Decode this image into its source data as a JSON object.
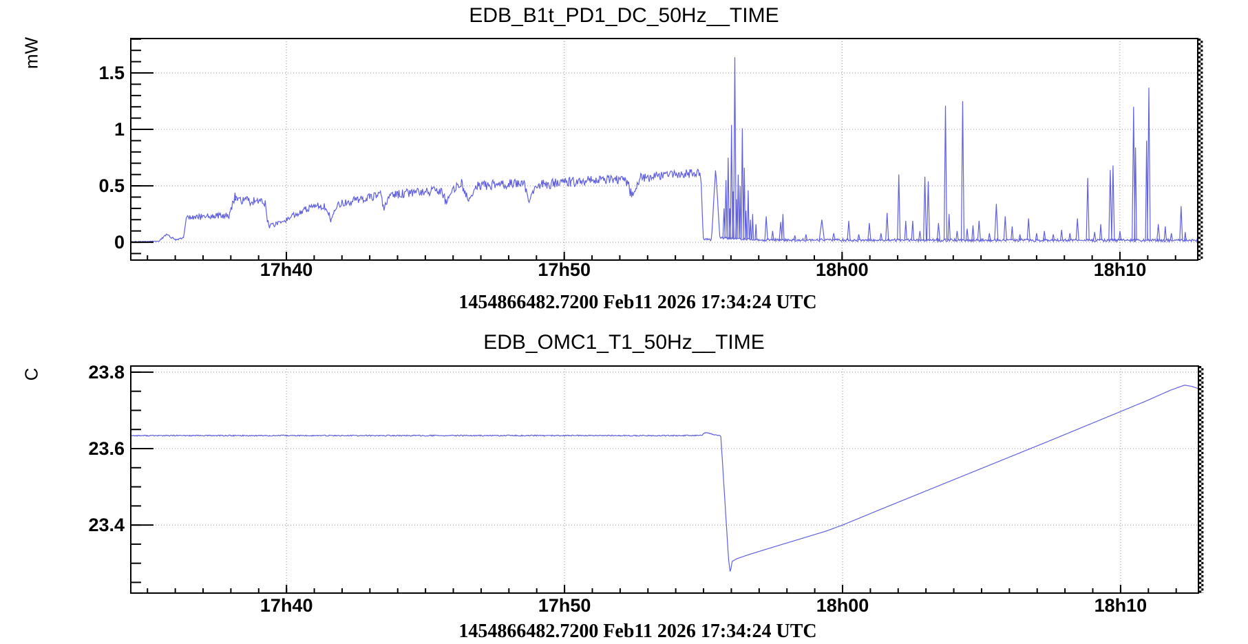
{
  "plots": [
    {
      "title": "EDB_B1t_PD1_DC_50Hz__TIME",
      "y_unit": "mW",
      "timestamp": "1454866482.7200 Feb11 2026 17:34:24 UTC"
    },
    {
      "title": "EDB_OMC1_T1_50Hz__TIME",
      "y_unit": "C",
      "timestamp": "1454866482.7200 Feb11 2026 17:34:24 UTC"
    }
  ],
  "chart_data": [
    {
      "type": "line",
      "title": "EDB_B1t_PD1_DC_50Hz__TIME",
      "series_name": "EDB_B1t_PD1_DC_50Hz",
      "ylabel": "mW",
      "x_start": "1454866482.7200 Feb11 2026 17:34:24 UTC",
      "x_axis_minutes_from_start": true,
      "xlim": [
        0,
        38.4
      ],
      "ylim": [
        -0.158,
        1.805
      ],
      "x_major_ticks": [
        {
          "t": 5.6,
          "label": "17h40"
        },
        {
          "t": 15.6,
          "label": "17h50"
        },
        {
          "t": 25.6,
          "label": "18h00"
        },
        {
          "t": 35.6,
          "label": "18h10"
        }
      ],
      "x_minor": {
        "start": 0.6,
        "step": 1
      },
      "y_major_ticks": [
        {
          "v": 0,
          "label": "0"
        },
        {
          "v": 0.5,
          "label": "0.5"
        },
        {
          "v": 1,
          "label": "1"
        },
        {
          "v": 1.5,
          "label": "1.5"
        }
      ],
      "y_minor": {
        "start": -0.1,
        "step": 0.1
      },
      "grid": true,
      "legend": "none",
      "line_color": "#5f5fe0",
      "grid_color": "#8c8c8c",
      "frame_color": "#000000",
      "noise_seed": 20260211,
      "backbone": [
        [
          0.0,
          0.004,
          0.004
        ],
        [
          1.0,
          0.01,
          0.008
        ],
        [
          1.3,
          0.07,
          0.01
        ],
        [
          1.6,
          0.02,
          0.006
        ],
        [
          1.9,
          0.04,
          0.006
        ],
        [
          2.0,
          0.22,
          0.03
        ],
        [
          3.55,
          0.235,
          0.03
        ],
        [
          3.7,
          0.37,
          0.04
        ],
        [
          4.85,
          0.36,
          0.04
        ],
        [
          4.95,
          0.14,
          0.02
        ],
        [
          5.35,
          0.17,
          0.03
        ],
        [
          6.6,
          0.33,
          0.035
        ],
        [
          7.05,
          0.31,
          0.03
        ],
        [
          7.2,
          0.2,
          0.02
        ],
        [
          7.45,
          0.34,
          0.035
        ],
        [
          9.0,
          0.42,
          0.04
        ],
        [
          9.1,
          0.3,
          0.025
        ],
        [
          9.35,
          0.42,
          0.04
        ],
        [
          11.2,
          0.46,
          0.045
        ],
        [
          11.35,
          0.35,
          0.025
        ],
        [
          11.6,
          0.47,
          0.04
        ],
        [
          11.9,
          0.52,
          0.045
        ],
        [
          12.15,
          0.37,
          0.025
        ],
        [
          12.45,
          0.5,
          0.045
        ],
        [
          14.15,
          0.52,
          0.045
        ],
        [
          14.3,
          0.36,
          0.025
        ],
        [
          14.6,
          0.51,
          0.045
        ],
        [
          17.8,
          0.565,
          0.05
        ],
        [
          18.05,
          0.41,
          0.03
        ],
        [
          18.35,
          0.57,
          0.045
        ],
        [
          20.3,
          0.62,
          0.04
        ],
        [
          20.52,
          0.6,
          0.01
        ],
        [
          20.6,
          0.03,
          0.008
        ],
        [
          20.9,
          0.02,
          0.008
        ],
        [
          21.05,
          0.66,
          0.01
        ],
        [
          21.2,
          0.04,
          0.01
        ],
        [
          22.7,
          0.02,
          0.012
        ],
        [
          38.4,
          0.016,
          0.007
        ]
      ],
      "spikes": [
        [
          3.75,
          0.44,
          0.03
        ],
        [
          21.35,
          0.3,
          0.04
        ],
        [
          21.42,
          0.55,
          0.04
        ],
        [
          21.5,
          0.75,
          0.04
        ],
        [
          21.56,
          0.3,
          0.03
        ],
        [
          21.62,
          1.04,
          0.04
        ],
        [
          21.68,
          0.45,
          0.03
        ],
        [
          21.74,
          1.64,
          0.045
        ],
        [
          21.8,
          0.38,
          0.03
        ],
        [
          21.86,
          0.6,
          0.035
        ],
        [
          21.93,
          0.5,
          0.03
        ],
        [
          22.01,
          1.01,
          0.04
        ],
        [
          22.08,
          0.66,
          0.035
        ],
        [
          22.14,
          0.28,
          0.03
        ],
        [
          22.22,
          0.46,
          0.035
        ],
        [
          22.3,
          0.2,
          0.03
        ],
        [
          22.38,
          0.25,
          0.03
        ],
        [
          22.5,
          0.16,
          0.03
        ],
        [
          22.87,
          0.23,
          0.05
        ],
        [
          23.1,
          0.1,
          0.04
        ],
        [
          23.39,
          0.18,
          0.05
        ],
        [
          23.47,
          0.25,
          0.04
        ],
        [
          23.9,
          0.06,
          0.04
        ],
        [
          24.3,
          0.07,
          0.04
        ],
        [
          24.87,
          0.2,
          0.09
        ],
        [
          25.3,
          0.08,
          0.05
        ],
        [
          25.84,
          0.19,
          0.05
        ],
        [
          26.2,
          0.07,
          0.04
        ],
        [
          26.58,
          0.17,
          0.05
        ],
        [
          27.0,
          0.08,
          0.04
        ],
        [
          27.22,
          0.26,
          0.05
        ],
        [
          27.64,
          0.6,
          0.05
        ],
        [
          27.89,
          0.19,
          0.04
        ],
        [
          28.14,
          0.19,
          0.04
        ],
        [
          28.4,
          0.1,
          0.04
        ],
        [
          28.58,
          0.58,
          0.05
        ],
        [
          28.7,
          0.54,
          0.05
        ],
        [
          29.07,
          0.17,
          0.05
        ],
        [
          29.32,
          1.21,
          0.05
        ],
        [
          29.45,
          0.25,
          0.04
        ],
        [
          29.74,
          0.1,
          0.04
        ],
        [
          29.94,
          1.25,
          0.05
        ],
        [
          30.1,
          0.12,
          0.04
        ],
        [
          30.31,
          0.15,
          0.04
        ],
        [
          30.53,
          0.19,
          0.05
        ],
        [
          30.9,
          0.08,
          0.04
        ],
        [
          31.15,
          0.34,
          0.06
        ],
        [
          31.47,
          0.23,
          0.05
        ],
        [
          31.72,
          0.14,
          0.04
        ],
        [
          32.0,
          0.07,
          0.04
        ],
        [
          32.31,
          0.21,
          0.05
        ],
        [
          32.6,
          0.08,
          0.04
        ],
        [
          32.88,
          0.1,
          0.04
        ],
        [
          33.2,
          0.07,
          0.04
        ],
        [
          33.5,
          0.11,
          0.04
        ],
        [
          33.8,
          0.08,
          0.04
        ],
        [
          34.07,
          0.21,
          0.05
        ],
        [
          34.44,
          0.57,
          0.05
        ],
        [
          34.69,
          0.09,
          0.04
        ],
        [
          34.91,
          0.16,
          0.04
        ],
        [
          35.25,
          0.64,
          0.05
        ],
        [
          35.35,
          0.68,
          0.05
        ],
        [
          35.6,
          0.1,
          0.04
        ],
        [
          36.09,
          1.2,
          0.05
        ],
        [
          36.16,
          0.84,
          0.04
        ],
        [
          36.56,
          0.9,
          0.04
        ],
        [
          36.64,
          1.37,
          0.05
        ],
        [
          36.98,
          0.16,
          0.05
        ],
        [
          37.23,
          0.14,
          0.04
        ],
        [
          37.45,
          0.08,
          0.04
        ],
        [
          37.8,
          0.32,
          0.05
        ],
        [
          37.95,
          0.09,
          0.03
        ]
      ]
    },
    {
      "type": "line",
      "title": "EDB_OMC1_T1_50Hz__TIME",
      "series_name": "EDB_OMC1_T1_50Hz",
      "ylabel": "C",
      "x_start": "1454866482.7200 Feb11 2026 17:34:24 UTC",
      "x_axis_minutes_from_start": true,
      "xlim": [
        0,
        38.4
      ],
      "ylim": [
        23.222,
        23.816
      ],
      "x_major_ticks": [
        {
          "t": 5.6,
          "label": "17h40"
        },
        {
          "t": 15.6,
          "label": "17h50"
        },
        {
          "t": 25.6,
          "label": "18h00"
        },
        {
          "t": 35.6,
          "label": "18h10"
        }
      ],
      "x_minor": {
        "start": 0.6,
        "step": 1
      },
      "y_major_ticks": [
        {
          "v": 23.4,
          "label": "23.4"
        },
        {
          "v": 23.6,
          "label": "23.6"
        },
        {
          "v": 23.8,
          "label": "23.8"
        }
      ],
      "y_minor": {
        "start": 23.25,
        "step": 0.05
      },
      "grid": true,
      "legend": "none",
      "line_color": "#5f5fe0",
      "grid_color": "#8c8c8c",
      "frame_color": "#000000",
      "noise_seed": 77,
      "backbone": [
        [
          0.0,
          23.634,
          0.0015
        ],
        [
          20.5,
          23.634,
          0.002
        ],
        [
          20.7,
          23.642,
          0.001
        ],
        [
          21.0,
          23.636,
          0.001
        ],
        [
          21.22,
          23.634,
          0.0
        ],
        [
          21.5,
          23.31,
          0.0
        ],
        [
          21.56,
          23.276,
          0.0
        ],
        [
          21.63,
          23.305,
          0.0
        ],
        [
          21.8,
          23.312,
          0.0
        ],
        [
          22.2,
          23.322,
          0.0
        ],
        [
          23.0,
          23.34,
          0.0
        ],
        [
          24.0,
          23.362,
          0.0
        ],
        [
          25.0,
          23.384,
          0.0
        ],
        [
          25.6,
          23.4,
          0.0
        ],
        [
          27.0,
          23.442,
          0.0
        ],
        [
          29.0,
          23.501,
          0.0
        ],
        [
          31.0,
          23.56,
          0.0
        ],
        [
          33.0,
          23.619,
          0.0
        ],
        [
          35.0,
          23.679,
          0.0
        ],
        [
          36.5,
          23.724,
          0.0
        ],
        [
          37.4,
          23.753,
          0.0
        ],
        [
          37.9,
          23.766,
          0.0
        ],
        [
          38.15,
          23.763,
          0.0
        ],
        [
          38.4,
          23.757,
          0.0
        ]
      ],
      "spikes": []
    }
  ]
}
